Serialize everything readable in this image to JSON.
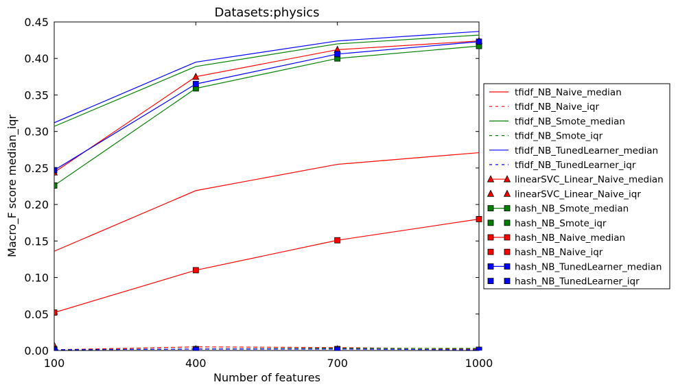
{
  "chart_data": {
    "type": "line",
    "title": "Datasets:physics",
    "xlabel": "Number of features",
    "ylabel": "Macro_F score median_iqr",
    "x": [
      100,
      400,
      700,
      1000
    ],
    "xticks": [
      "100",
      "400",
      "700",
      "1000"
    ],
    "xlim": [
      100,
      1000
    ],
    "yticks": [
      "0.00",
      "0.05",
      "0.10",
      "0.15",
      "0.20",
      "0.25",
      "0.30",
      "0.35",
      "0.40",
      "0.45"
    ],
    "ylim": [
      0,
      0.45
    ],
    "grid": false,
    "legend_position": "right, outside plot",
    "series": [
      {
        "name": "tfidf_NB_Naive_median",
        "color": "#ff0000",
        "dash": "solid",
        "marker": "none",
        "values": [
          0.136,
          0.219,
          0.255,
          0.271
        ]
      },
      {
        "name": "tfidf_NB_Naive_iqr",
        "color": "#ff0000",
        "dash": "dashed",
        "marker": "none",
        "values": [
          0.001,
          0.005,
          0.004,
          0.002
        ]
      },
      {
        "name": "tfidf_NB_Smote_median",
        "color": "#008000",
        "dash": "solid",
        "marker": "none",
        "values": [
          0.307,
          0.389,
          0.42,
          0.432
        ]
      },
      {
        "name": "tfidf_NB_Smote_iqr",
        "color": "#008000",
        "dash": "dashed",
        "marker": "none",
        "values": [
          0.001,
          0.002,
          0.003,
          0.003
        ]
      },
      {
        "name": "tfidf_NB_TunedLearner_median",
        "color": "#0000ff",
        "dash": "solid",
        "marker": "none",
        "values": [
          0.312,
          0.395,
          0.424,
          0.437
        ]
      },
      {
        "name": "tfidf_NB_TunedLearner_iqr",
        "color": "#0000ff",
        "dash": "dashed",
        "marker": "none",
        "values": [
          0.001,
          0.002,
          0.002,
          0.001
        ]
      },
      {
        "name": "linearSVC_Linear_Naive_median",
        "color": "#ff0000",
        "dash": "solid",
        "marker": "triangle",
        "values": [
          0.244,
          0.375,
          0.412,
          0.424
        ]
      },
      {
        "name": "linearSVC_Linear_Naive_iqr",
        "color": "#ff0000",
        "dash": "none",
        "marker": "triangle",
        "values": [
          0.007,
          0.002,
          0.002,
          0.001
        ]
      },
      {
        "name": "hash_NB_Smote_median",
        "color": "#008000",
        "dash": "solid",
        "marker": "square",
        "values": [
          0.226,
          0.359,
          0.4,
          0.417
        ]
      },
      {
        "name": "hash_NB_Smote_iqr",
        "color": "#008000",
        "dash": "none",
        "marker": "square",
        "values": [
          0.002,
          0.002,
          0.002,
          0.001
        ]
      },
      {
        "name": "hash_NB_Naive_median",
        "color": "#ff0000",
        "dash": "solid",
        "marker": "square",
        "values": [
          0.052,
          0.11,
          0.151,
          0.18
        ]
      },
      {
        "name": "hash_NB_Naive_iqr",
        "color": "#ff0000",
        "dash": "none",
        "marker": "square",
        "values": [
          0.001,
          0.001,
          0.002,
          0.001
        ]
      },
      {
        "name": "hash_NB_TunedLearner_median",
        "color": "#0000ff",
        "dash": "solid",
        "marker": "square",
        "values": [
          0.247,
          0.365,
          0.406,
          0.423
        ]
      },
      {
        "name": "hash_NB_TunedLearner_iqr",
        "color": "#0000ff",
        "dash": "none",
        "marker": "square",
        "values": [
          0.001,
          0.001,
          0.001,
          0.001
        ]
      }
    ]
  }
}
